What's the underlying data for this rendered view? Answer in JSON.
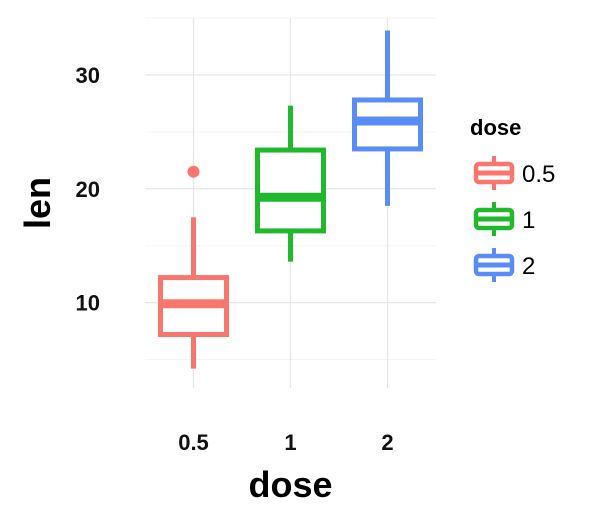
{
  "chart_data": {
    "type": "boxplot",
    "title": "",
    "xlabel": "dose",
    "ylabel": "len",
    "categories": [
      "0.5",
      "1",
      "2"
    ],
    "ylim": [
      2.5,
      35
    ],
    "yticks": [
      10,
      20,
      30
    ],
    "grid": true,
    "legend": {
      "title": "dose",
      "placement": "right",
      "entries": [
        "0.5",
        "1",
        "2"
      ]
    },
    "colors": [
      "#F8766D",
      "#20B82C",
      "#5A8CF8"
    ],
    "boxes": [
      {
        "category": "0.5",
        "whisker_low": 4.2,
        "q1": 7.2,
        "median": 9.9,
        "q3": 12.2,
        "whisker_high": 17.5,
        "outliers": [
          21.5
        ]
      },
      {
        "category": "1",
        "whisker_low": 13.6,
        "q1": 16.3,
        "median": 19.25,
        "q3": 23.4,
        "whisker_high": 27.3,
        "outliers": []
      },
      {
        "category": "2",
        "whisker_low": 18.5,
        "q1": 23.5,
        "median": 25.95,
        "q3": 27.8,
        "whisker_high": 33.9,
        "outliers": []
      }
    ]
  }
}
